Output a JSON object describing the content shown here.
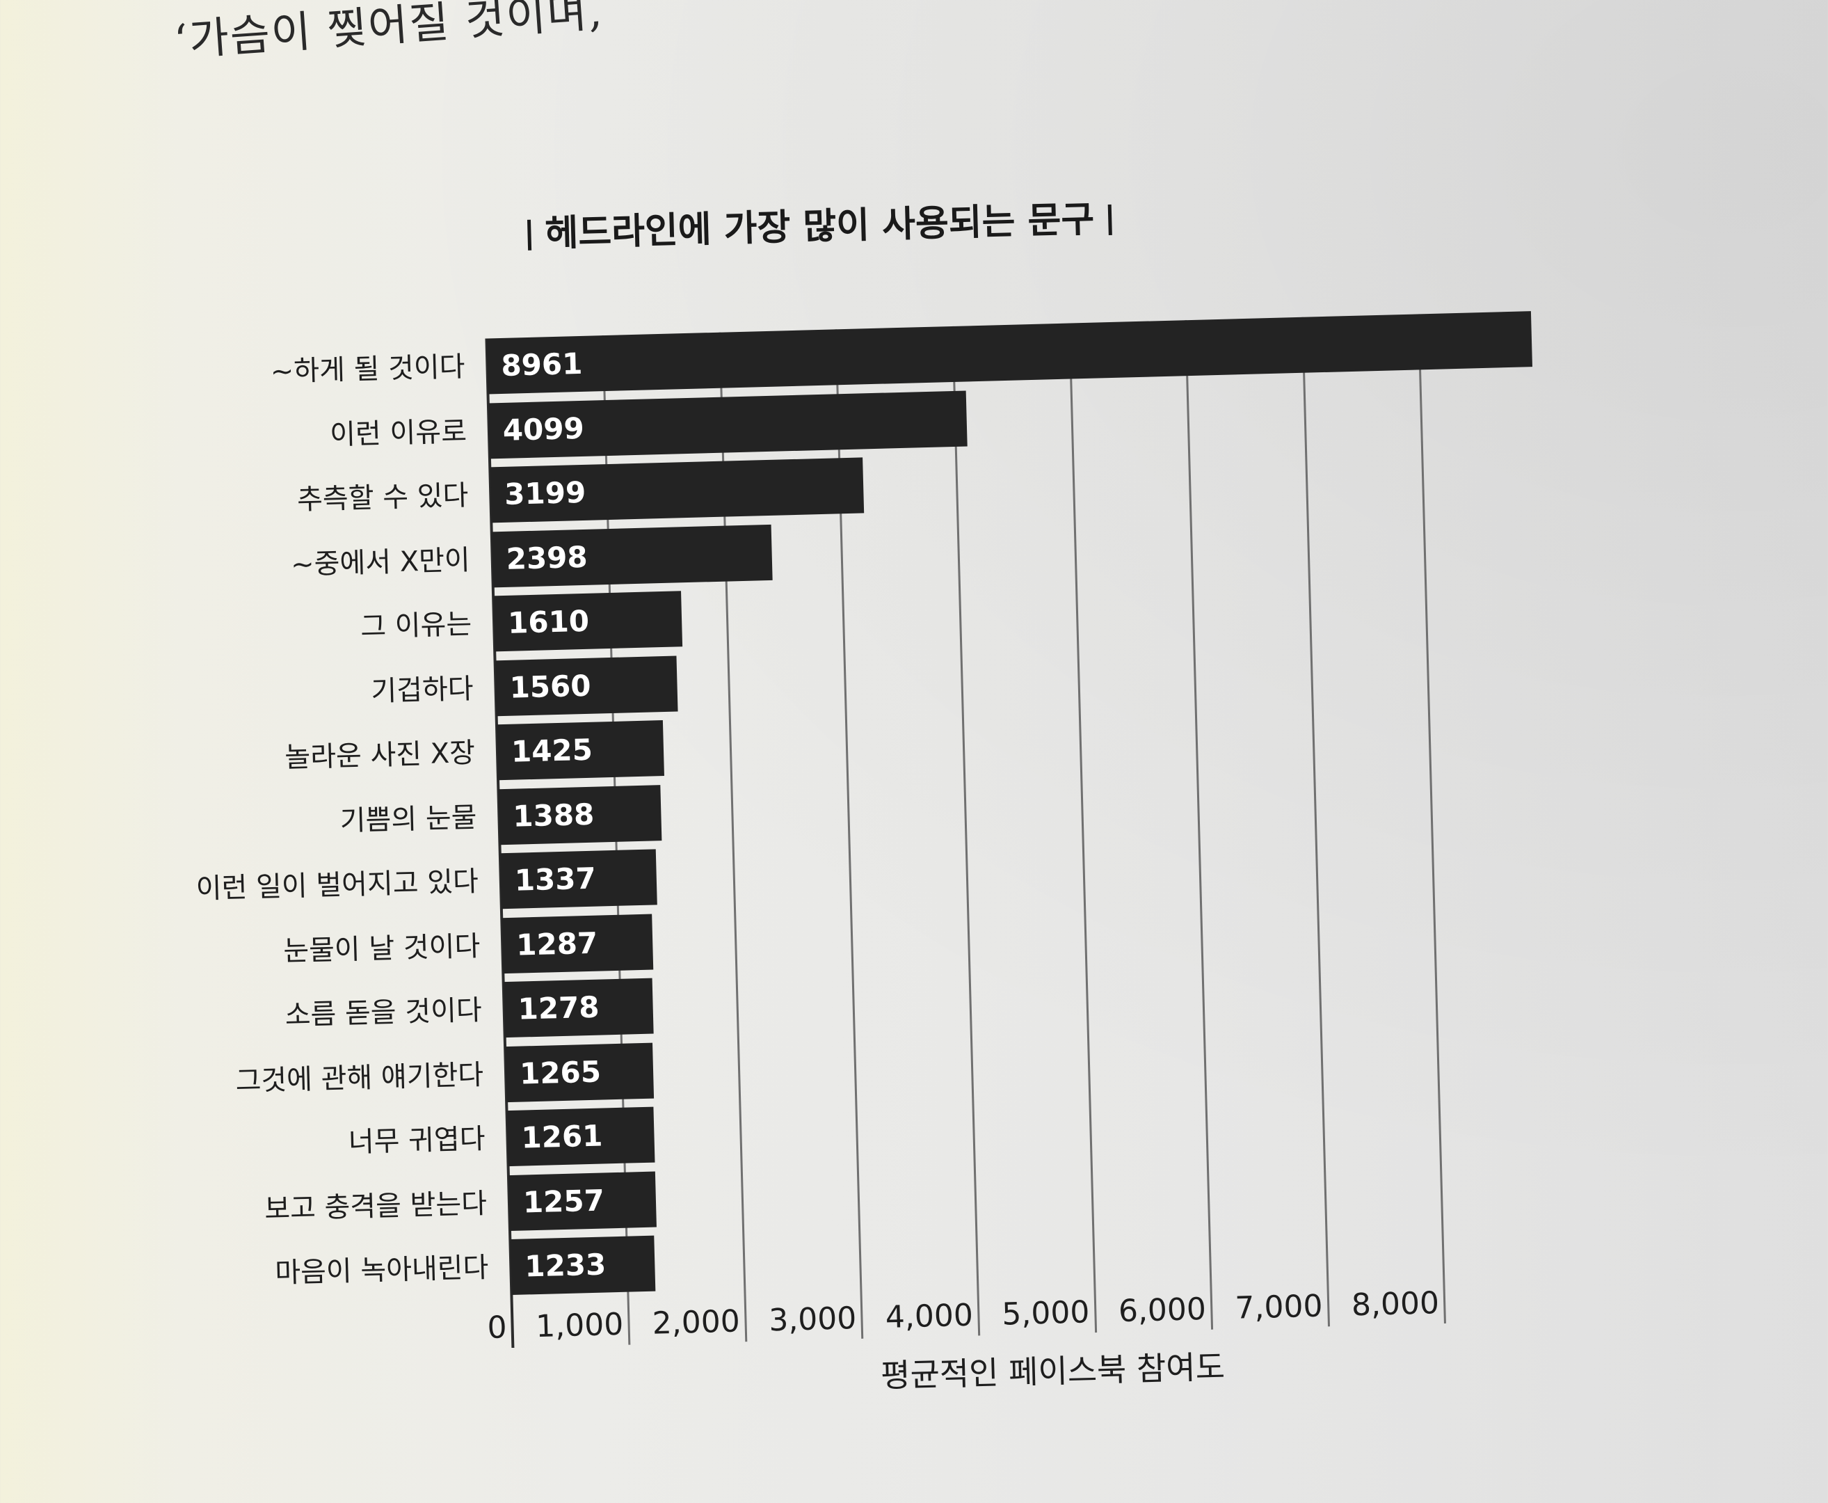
{
  "page": {
    "top_text": "‘가슴이 찢어질 것이며,"
  },
  "chart_data": {
    "type": "bar",
    "orientation": "horizontal",
    "title": "헤드라인에 가장 많이 사용되는 문구",
    "xlabel": "평균적인 페이스북 참여도",
    "categories": [
      "~하게 될 것이다",
      "이런 이유로",
      "추측할 수 있다",
      "~중에서 X만이",
      "그 이유는",
      "기겁하다",
      "놀라운 사진 X장",
      "기쁨의 눈물",
      "이런 일이 벌어지고 있다",
      "눈물이 날 것이다",
      "소름 돋을 것이다",
      "그것에 관해 얘기한다",
      "너무 귀엽다",
      "보고 충격을 받는다",
      "마음이 녹아내린다"
    ],
    "values": [
      8961,
      4099,
      3199,
      2398,
      1610,
      1560,
      1425,
      1388,
      1337,
      1287,
      1278,
      1265,
      1261,
      1257,
      1233
    ],
    "data_labels": "inside-bar",
    "xlim": [
      0,
      9000
    ],
    "xticks": [
      0,
      1000,
      2000,
      3000,
      4000,
      5000,
      6000,
      7000,
      8000
    ],
    "xtick_labels": [
      "0",
      "1,000",
      "2,000",
      "3,000",
      "4,000",
      "5,000",
      "6,000",
      "7,000",
      "8,000"
    ],
    "grid": "vertical",
    "legend": "none",
    "bar_color": "#232323",
    "label_color": "#ffffff"
  }
}
